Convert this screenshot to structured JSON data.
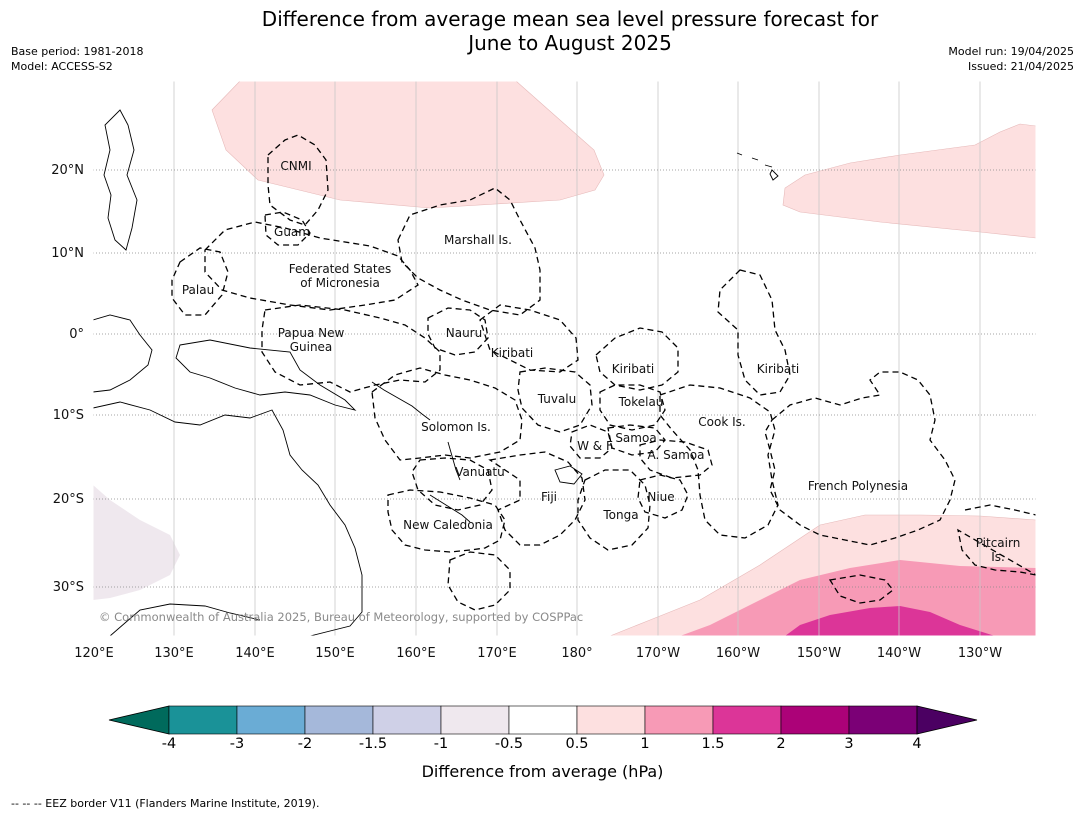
{
  "header": {
    "title_line1": "Difference from average mean sea level pressure forecast for",
    "title_line2": "June to August 2025",
    "base_period": "Base period: 1981-2018",
    "model": "Model: ACCESS-S2",
    "model_run": "Model run: 19/04/2025",
    "issued": "Issued: 21/04/2025"
  },
  "map": {
    "lon_labels": [
      "120°E",
      "130°E",
      "140°E",
      "150°E",
      "160°E",
      "170°E",
      "180°",
      "170°W",
      "160°W",
      "150°W",
      "140°W",
      "130°W"
    ],
    "lat_labels": [
      "20°N",
      "10°N",
      "0°",
      "10°S",
      "20°S",
      "30°S"
    ],
    "eez_labels": {
      "cnmi": "CNMI",
      "guam": "Guam",
      "marshall": "Marshall Is.",
      "fsm_line1": "Federated States",
      "fsm_line2": "of Micronesia",
      "palau": "Palau",
      "png_line1": "Papua New",
      "png_line2": "Guinea",
      "nauru": "Nauru",
      "kiribati_west": "Kiribati",
      "kiribati_central": "Kiribati",
      "kiribati_east": "Kiribati",
      "tuvalu": "Tuvalu",
      "tokelau": "Tokelau",
      "solomon": "Solomon Is.",
      "samoa": "Samoa",
      "wallis_futuna": "W & F",
      "american_samoa": "A. Samoa",
      "cook": "Cook Is.",
      "vanuatu": "Vanuatu",
      "fiji": "Fiji",
      "niue": "Niue",
      "tonga": "Tonga",
      "french_polynesia": "French Polynesia",
      "new_caledonia": "New Caledonia",
      "pitcairn_line1": "Pitcairn",
      "pitcairn_line2": "Is."
    },
    "copyright": "© Commonwealth of Australia 2025, Bureau of Meteorology, supported by COSPPac",
    "anomaly_colors": {
      "pos_0_5_to_1": "#fde0e0",
      "pos_1_to_1_5": "#f79ab6",
      "pos_1_5_to_2": "#dc3598",
      "neg_0_5_to_1": "#efe8ee"
    }
  },
  "colorbar": {
    "ticks": [
      "-4",
      "-3",
      "-2",
      "-1.5",
      "-1",
      "-0.5",
      "0.5",
      "1",
      "1.5",
      "2",
      "3",
      "4"
    ],
    "colors": [
      "#1a9298",
      "#6aacd5",
      "#a5b8da",
      "#cfd0e7",
      "#efe8ee",
      "#ffffff",
      "#fde0e0",
      "#f79ab6",
      "#dc3598",
      "#ac0278",
      "#7b0076"
    ],
    "under_color": "#006a5c",
    "over_color": "#4b0062",
    "title": "Difference from average (hPa)"
  },
  "footer": {
    "legend": "--  --  -- EEZ border V11 (Flanders Marine Institute, 2019)."
  }
}
